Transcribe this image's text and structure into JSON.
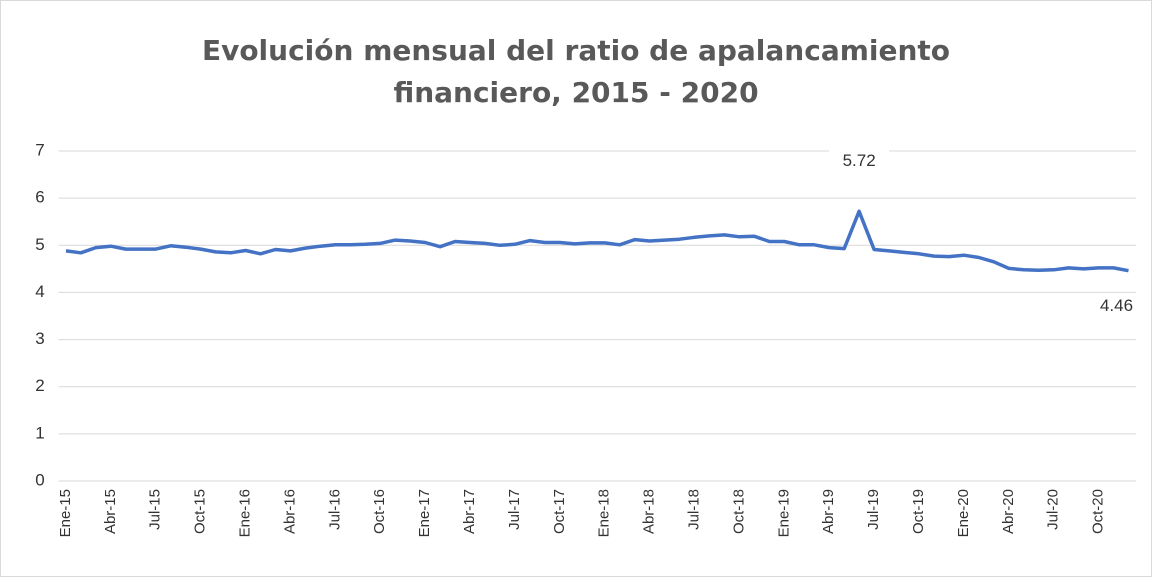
{
  "chart_data": {
    "type": "line",
    "title": "Evolución mensual del ratio de apalancamiento financiero, 2015 - 2020",
    "categories": [
      "Ene-15",
      null,
      null,
      "Abr-15",
      null,
      null,
      "Jul-15",
      null,
      null,
      "Oct-15",
      null,
      null,
      "Ene-16",
      null,
      null,
      "Abr-16",
      null,
      null,
      "Jul-16",
      null,
      null,
      "Oct-16",
      null,
      null,
      "Ene-17",
      null,
      null,
      "Abr-17",
      null,
      null,
      "Jul-17",
      null,
      null,
      "Oct-17",
      null,
      null,
      "Ene-18",
      null,
      null,
      "Abr-18",
      null,
      null,
      "Jul-18",
      null,
      null,
      "Oct-18",
      null,
      null,
      "Ene-19",
      null,
      null,
      "Abr-19",
      null,
      null,
      "Jul-19",
      null,
      null,
      "Oct-19",
      null,
      null,
      "Ene-20",
      null,
      null,
      "Abr-20",
      null,
      null,
      "Jul-20",
      null,
      null,
      "Oct-20",
      null,
      null
    ],
    "values": [
      4.88,
      4.84,
      4.95,
      4.98,
      4.92,
      4.92,
      4.92,
      4.99,
      4.96,
      4.92,
      4.86,
      4.84,
      4.89,
      4.82,
      4.91,
      4.88,
      4.94,
      4.98,
      5.01,
      5.01,
      5.02,
      5.04,
      5.11,
      5.09,
      5.06,
      4.97,
      5.08,
      5.06,
      5.04,
      5.0,
      5.02,
      5.1,
      5.06,
      5.06,
      5.03,
      5.05,
      5.05,
      5.01,
      5.12,
      5.09,
      5.11,
      5.13,
      5.17,
      5.2,
      5.22,
      5.18,
      5.19,
      5.08,
      5.08,
      5.01,
      5.01,
      4.95,
      4.93,
      5.72,
      4.91,
      4.88,
      4.85,
      4.82,
      4.77,
      4.76,
      4.79,
      4.74,
      4.65,
      4.51,
      4.48,
      4.47,
      4.48,
      4.52,
      4.5,
      4.52,
      4.52,
      4.46
    ],
    "color": "#4472c4",
    "ylim": [
      0,
      7
    ],
    "yticks": [
      0,
      1,
      2,
      3,
      4,
      5,
      6,
      7
    ],
    "grid": true
  }
}
